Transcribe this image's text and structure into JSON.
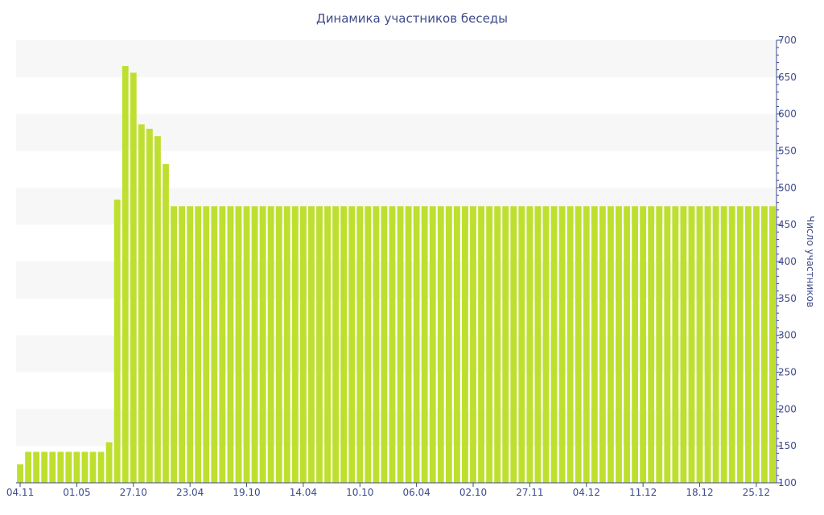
{
  "chart_data": {
    "type": "bar",
    "title": "Динамика участников беседы",
    "xlabel": "",
    "ylabel": "Число участников",
    "ylim": [
      100,
      700
    ],
    "yticks": [
      100,
      150,
      200,
      250,
      300,
      350,
      400,
      450,
      500,
      550,
      600,
      650,
      700
    ],
    "y_axis_position": "right",
    "grid": "alternating horizontal bands",
    "legend": "none",
    "colors": {
      "bar": "#bfdf2f",
      "band": "#f7f7f7",
      "text": "#3d4a8c",
      "axis": "#3d4a8c"
    },
    "x_tick_labels": [
      {
        "index": 0,
        "label": "04.11"
      },
      {
        "index": 7,
        "label": "01.05"
      },
      {
        "index": 14,
        "label": "27.10"
      },
      {
        "index": 21,
        "label": "23.04"
      },
      {
        "index": 28,
        "label": "19.10"
      },
      {
        "index": 35,
        "label": "14.04"
      },
      {
        "index": 42,
        "label": "10.10"
      },
      {
        "index": 49,
        "label": "06.04"
      },
      {
        "index": 56,
        "label": "02.10"
      },
      {
        "index": 63,
        "label": "27.11"
      },
      {
        "index": 70,
        "label": "04.12"
      },
      {
        "index": 77,
        "label": "11.12"
      },
      {
        "index": 84,
        "label": "18.12"
      },
      {
        "index": 91,
        "label": "25.12"
      }
    ],
    "values": [
      125,
      142,
      142,
      142,
      142,
      142,
      142,
      142,
      142,
      142,
      142,
      155,
      484,
      665,
      656,
      586,
      580,
      570,
      532,
      475,
      475,
      475,
      475,
      475,
      475,
      475,
      475,
      475,
      475,
      475,
      475,
      475,
      475,
      475,
      475,
      475,
      475,
      475,
      475,
      475,
      475,
      475,
      475,
      475,
      475,
      475,
      475,
      475,
      475,
      475,
      475,
      475,
      475,
      475,
      475,
      475,
      475,
      475,
      475,
      475,
      475,
      475,
      475,
      475,
      475,
      475,
      475,
      475,
      475,
      475,
      475,
      475,
      475,
      475,
      475,
      475,
      475,
      475,
      475,
      475,
      475,
      475,
      475,
      475,
      475,
      475,
      475,
      475,
      475,
      475,
      475,
      475,
      475,
      475
    ]
  }
}
